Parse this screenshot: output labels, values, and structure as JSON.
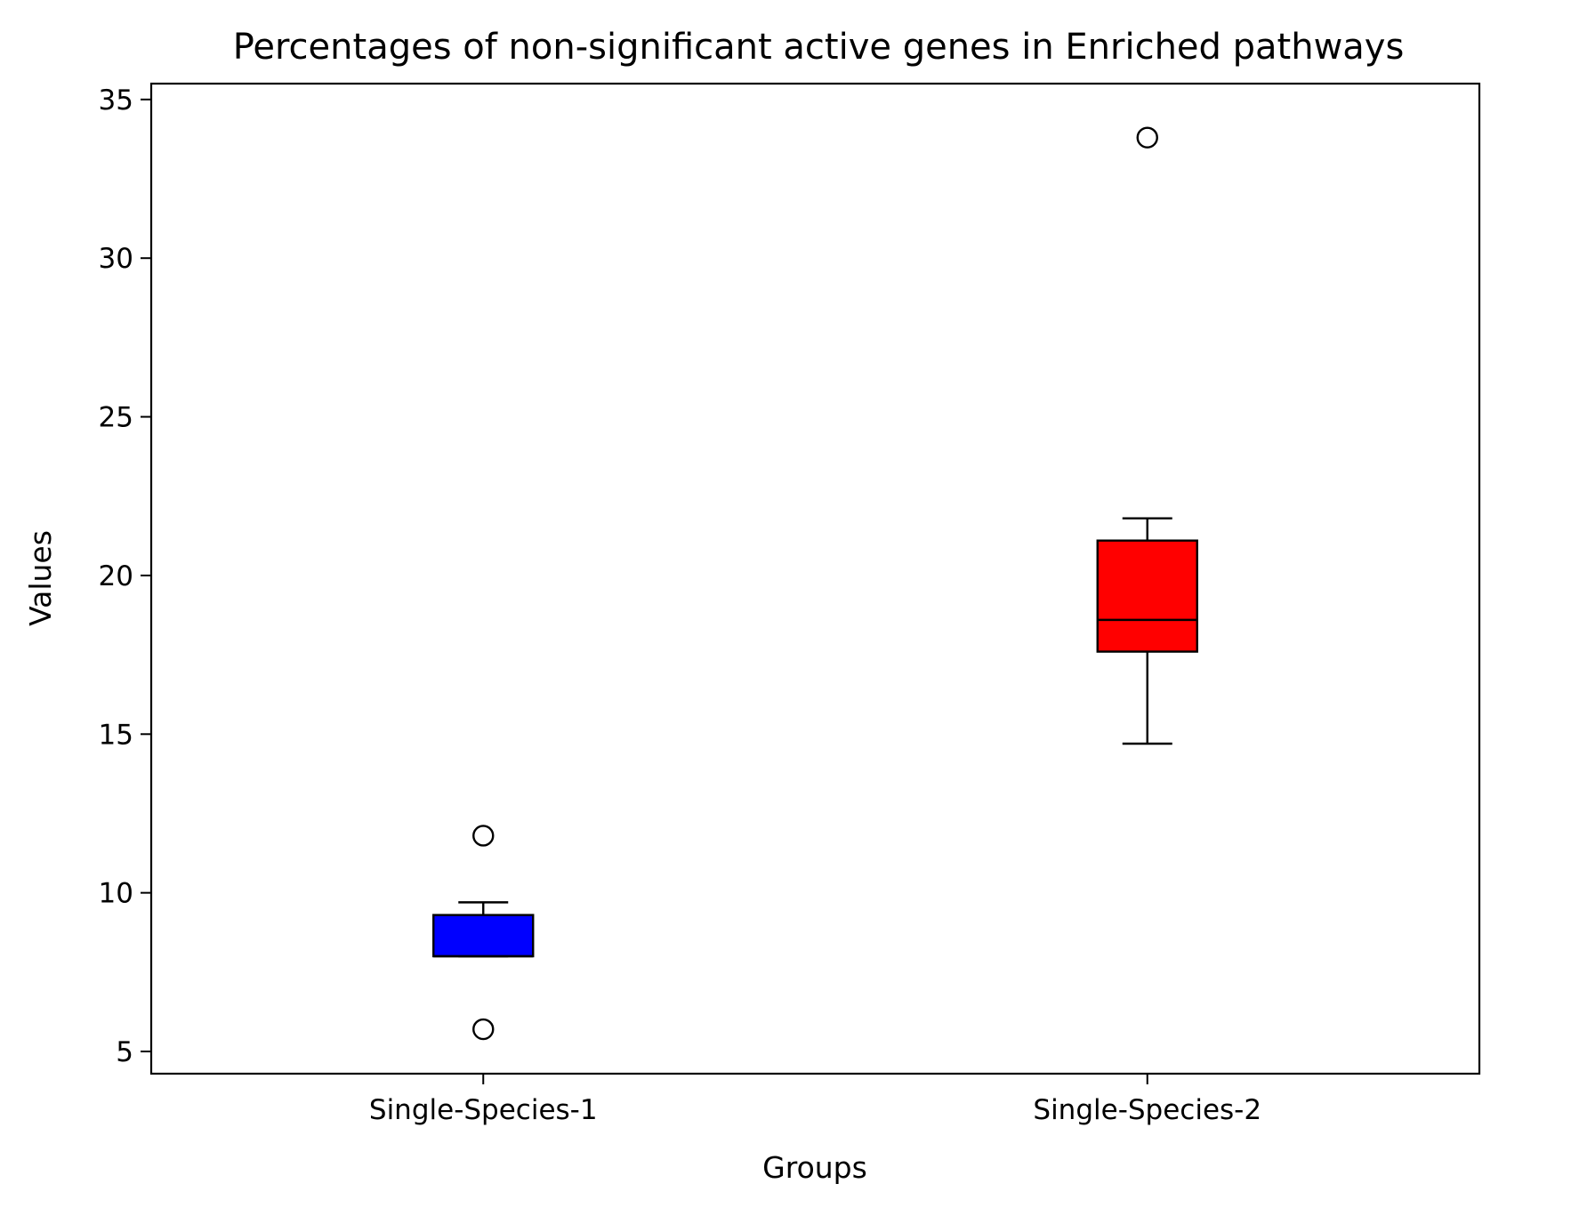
{
  "chart_data": {
    "type": "boxplot",
    "title": "Percentages of non-significant active genes in Enriched pathways",
    "xlabel": "Groups",
    "ylabel": "Values",
    "categories": [
      "Single-Species-1",
      "Single-Species-2"
    ],
    "ylim": [
      4.3,
      35.5
    ],
    "yticks": [
      5,
      10,
      15,
      20,
      25,
      30,
      35
    ],
    "grid": false,
    "boxes": [
      {
        "category": "Single-Species-1",
        "color": "#0000ff",
        "whisker_low": 8.0,
        "q1": 8.0,
        "median": 8.0,
        "q3": 9.3,
        "whisker_high": 9.7,
        "outliers": [
          11.8,
          5.7
        ]
      },
      {
        "category": "Single-Species-2",
        "color": "#ff0000",
        "whisker_low": 14.7,
        "q1": 17.6,
        "median": 18.6,
        "q3": 21.1,
        "whisker_high": 21.8,
        "outliers": [
          33.8
        ]
      }
    ]
  }
}
